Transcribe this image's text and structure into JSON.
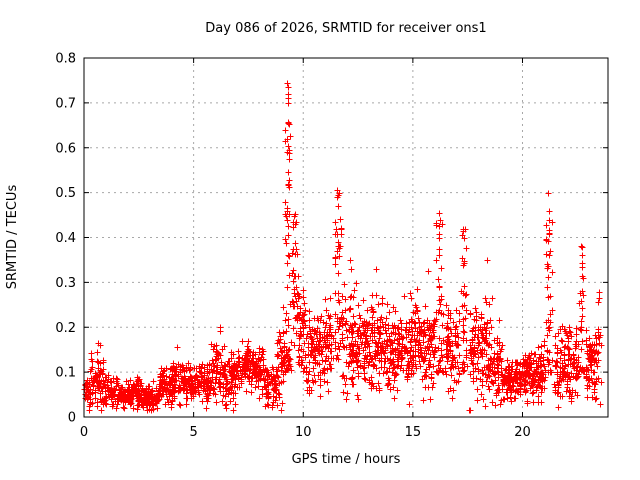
{
  "page": {
    "window_title": "Day 086 of 2026, SRMTID for receiver ons1"
  },
  "chart_data": {
    "type": "scatter",
    "title": "Day 086 of 2026, SRMTID for receiver ons1",
    "xlabel": "GPS time / hours",
    "ylabel": "SRMTID / TECUs",
    "xlim": [
      0,
      23.9
    ],
    "ylim": [
      0,
      0.8
    ],
    "xticks": [
      0,
      5,
      10,
      15,
      20
    ],
    "yticks": [
      0,
      0.1,
      0.2,
      0.3,
      0.4,
      0.5,
      0.6,
      0.7,
      0.8
    ],
    "grid": true,
    "legend": "none",
    "marker": {
      "shape": "plus",
      "color": "#ff0000",
      "size": 7
    },
    "series_name": "SRMTID",
    "summary": "Dense 30-s scatter: quiet band 0.03-0.12 TECU from 0-5 h, slowly rising 0.08-0.2 from 5-9 h, large spike to 0.74 near 9.3 h, active period 0.1-0.3 from 10-19 h with spikes 0.51 @11.5h, 0.46 @16.2h, 0.42 @17.3h, quieter 0.05-0.15 band 19-21 h, spikes 0.50 @21.2h and 0.38 @22.7h, data ends ~23.6 h",
    "band_segments_format": [
      "t_start_h",
      "t_end_h",
      "n_points",
      "mean_TECU",
      "spread_TECU",
      "max_TECU"
    ],
    "band_segments": [
      [
        0.0,
        0.3,
        40,
        0.055,
        0.022,
        0.13
      ],
      [
        0.3,
        0.9,
        75,
        0.075,
        0.03,
        0.165
      ],
      [
        0.9,
        1.5,
        70,
        0.058,
        0.018,
        0.11
      ],
      [
        1.5,
        2.2,
        80,
        0.048,
        0.014,
        0.09
      ],
      [
        2.2,
        2.7,
        60,
        0.055,
        0.02,
        0.14
      ],
      [
        2.7,
        3.4,
        80,
        0.045,
        0.013,
        0.085
      ],
      [
        3.4,
        4.0,
        70,
        0.065,
        0.02,
        0.125
      ],
      [
        4.0,
        4.6,
        70,
        0.075,
        0.024,
        0.155
      ],
      [
        4.6,
        5.2,
        70,
        0.07,
        0.02,
        0.12
      ],
      [
        5.2,
        5.8,
        70,
        0.08,
        0.024,
        0.14
      ],
      [
        5.8,
        6.4,
        70,
        0.1,
        0.035,
        0.21
      ],
      [
        6.4,
        7.0,
        70,
        0.09,
        0.03,
        0.16
      ],
      [
        7.0,
        7.6,
        70,
        0.12,
        0.026,
        0.175
      ],
      [
        7.6,
        8.2,
        70,
        0.11,
        0.028,
        0.17
      ],
      [
        8.2,
        8.8,
        70,
        0.07,
        0.025,
        0.13
      ],
      [
        8.8,
        9.15,
        45,
        0.13,
        0.05,
        0.25
      ],
      [
        9.45,
        9.7,
        35,
        0.3,
        0.09,
        0.52
      ],
      [
        9.7,
        10.1,
        50,
        0.2,
        0.055,
        0.32
      ],
      [
        10.1,
        10.8,
        85,
        0.14,
        0.045,
        0.28
      ],
      [
        10.8,
        11.3,
        60,
        0.15,
        0.045,
        0.3
      ],
      [
        11.75,
        12.4,
        80,
        0.17,
        0.055,
        0.35
      ],
      [
        12.4,
        13.0,
        75,
        0.16,
        0.05,
        0.3
      ],
      [
        13.0,
        13.6,
        75,
        0.16,
        0.055,
        0.33
      ],
      [
        13.6,
        14.2,
        75,
        0.14,
        0.045,
        0.28
      ],
      [
        14.2,
        14.9,
        85,
        0.15,
        0.05,
        0.31
      ],
      [
        14.9,
        15.6,
        85,
        0.16,
        0.05,
        0.3
      ],
      [
        15.6,
        16.05,
        55,
        0.15,
        0.05,
        0.33
      ],
      [
        16.45,
        17.1,
        80,
        0.15,
        0.05,
        0.3
      ],
      [
        17.55,
        18.2,
        80,
        0.14,
        0.05,
        0.28
      ],
      [
        18.2,
        18.6,
        50,
        0.15,
        0.055,
        0.35
      ],
      [
        18.6,
        19.1,
        60,
        0.12,
        0.04,
        0.22
      ],
      [
        19.1,
        19.9,
        95,
        0.085,
        0.024,
        0.15
      ],
      [
        19.9,
        20.8,
        110,
        0.095,
        0.028,
        0.17
      ],
      [
        20.8,
        21.05,
        30,
        0.1,
        0.035,
        0.18
      ],
      [
        21.45,
        22.1,
        80,
        0.12,
        0.04,
        0.24
      ],
      [
        22.1,
        22.55,
        55,
        0.11,
        0.04,
        0.2
      ],
      [
        22.85,
        23.4,
        75,
        0.115,
        0.04,
        0.2
      ],
      [
        23.4,
        23.6,
        15,
        0.15,
        0.07,
        0.3
      ]
    ],
    "spike_columns_format": [
      "t_center_h",
      "half_width_h",
      "n_points",
      "low_TECU",
      "high_TECU"
    ],
    "spike_columns": [
      [
        9.3,
        0.13,
        60,
        0.1,
        0.66
      ],
      [
        11.55,
        0.18,
        45,
        0.13,
        0.51
      ],
      [
        16.22,
        0.16,
        40,
        0.1,
        0.46
      ],
      [
        17.33,
        0.15,
        35,
        0.1,
        0.42
      ],
      [
        21.2,
        0.15,
        40,
        0.1,
        0.5
      ],
      [
        22.7,
        0.12,
        25,
        0.1,
        0.38
      ]
    ],
    "peak_points_format": [
      "t_h",
      "TECU"
    ],
    "peak_points": [
      [
        9.28,
        0.745
      ],
      [
        9.31,
        0.735
      ],
      [
        9.3,
        0.72
      ],
      [
        9.29,
        0.71
      ],
      [
        9.32,
        0.7
      ],
      [
        9.3,
        0.655
      ],
      [
        9.27,
        0.59
      ],
      [
        9.34,
        0.575
      ],
      [
        11.52,
        0.505
      ],
      [
        11.56,
        0.49
      ],
      [
        11.58,
        0.47
      ],
      [
        16.2,
        0.455
      ],
      [
        16.24,
        0.44
      ],
      [
        16.18,
        0.425
      ],
      [
        17.3,
        0.42
      ],
      [
        17.35,
        0.4
      ],
      [
        21.18,
        0.5
      ],
      [
        21.22,
        0.46
      ],
      [
        21.2,
        0.44
      ],
      [
        22.68,
        0.38
      ],
      [
        22.72,
        0.36
      ],
      [
        18.4,
        0.35
      ],
      [
        12.15,
        0.35
      ],
      [
        12.18,
        0.33
      ],
      [
        15.7,
        0.325
      ],
      [
        13.3,
        0.33
      ],
      [
        6.2,
        0.2
      ],
      [
        0.65,
        0.165
      ],
      [
        4.25,
        0.155
      ]
    ]
  },
  "colors": {
    "marker": "#ff0000",
    "grid": "#a8a8a8",
    "border": "#000000",
    "background": "#ffffff",
    "text": "#000000"
  }
}
